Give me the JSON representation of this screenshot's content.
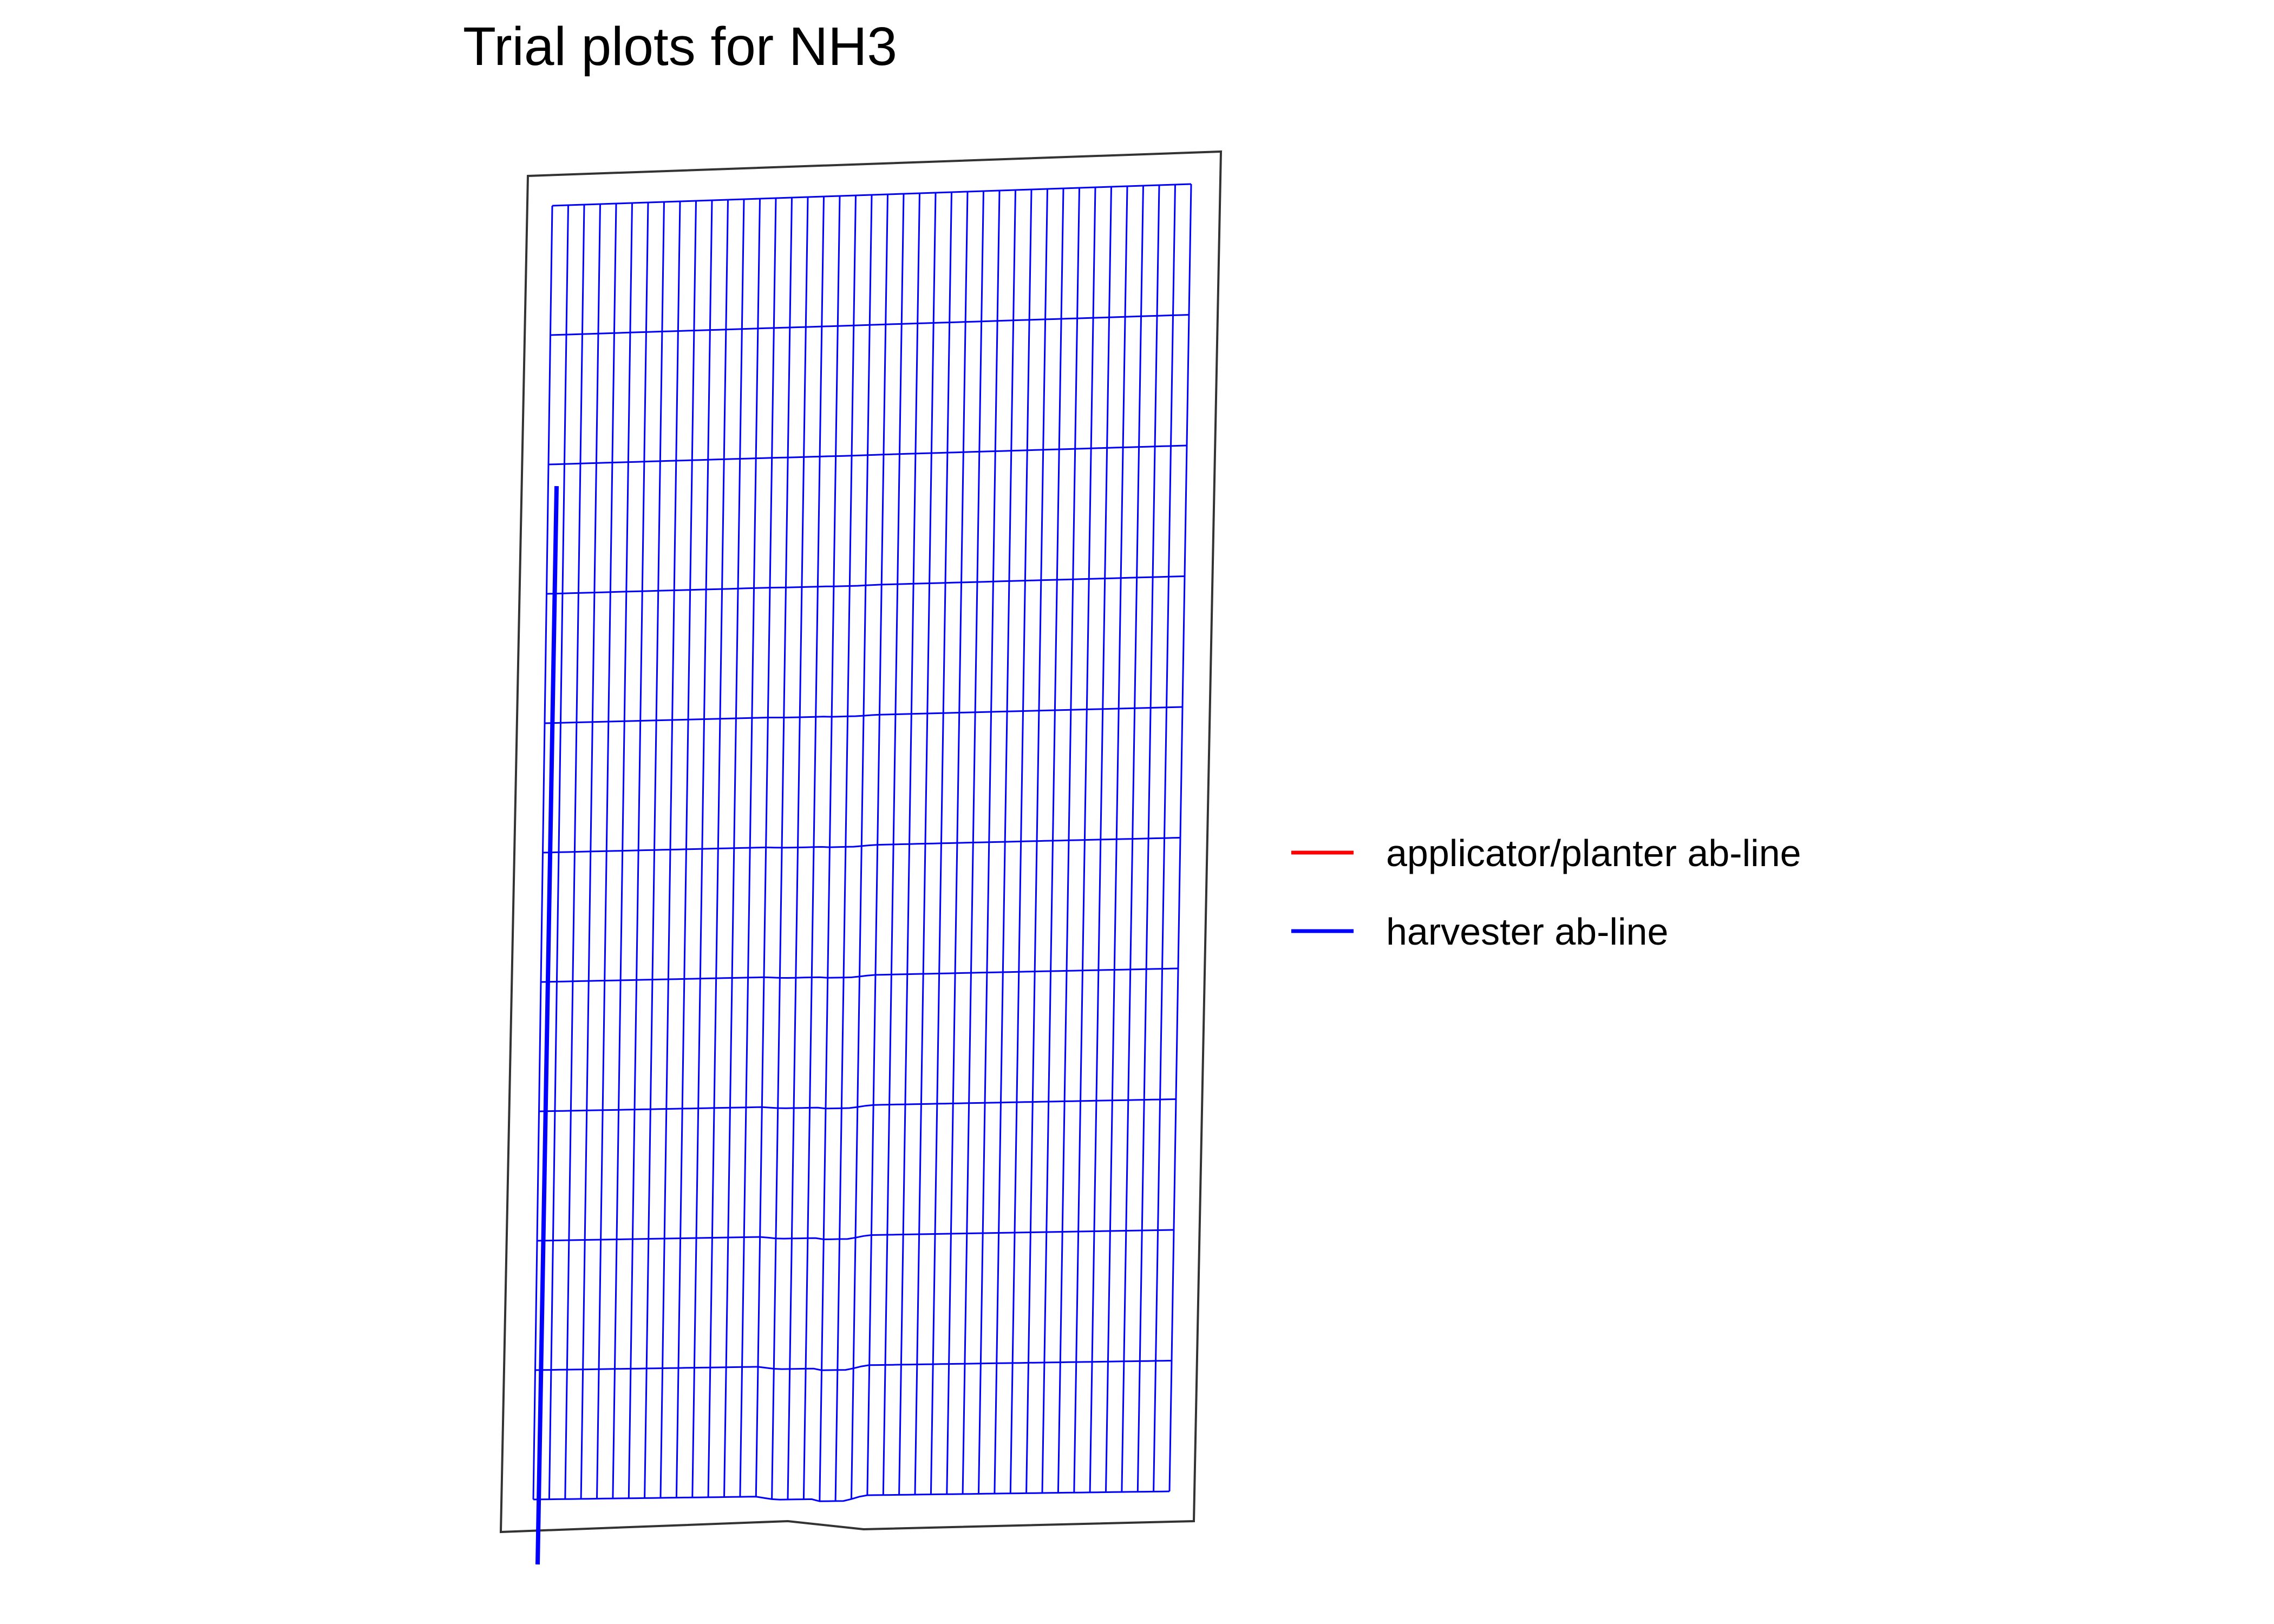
{
  "title": "Trial plots for NH3",
  "colors": {
    "background": "#ffffff",
    "field_boundary": "#333333",
    "plot_grid": "#0000ff",
    "applicator_line": "#ff0000",
    "harvester_line": "#0000ff"
  },
  "legend": {
    "items": [
      {
        "label": "applicator/planter ab-line",
        "color": "#ff0000",
        "icon": "line-swatch"
      },
      {
        "label": "harvester ab-line",
        "color": "#0000ff",
        "icon": "line-swatch"
      }
    ]
  },
  "map": {
    "plot_columns": 40,
    "plot_rows": 10
  }
}
